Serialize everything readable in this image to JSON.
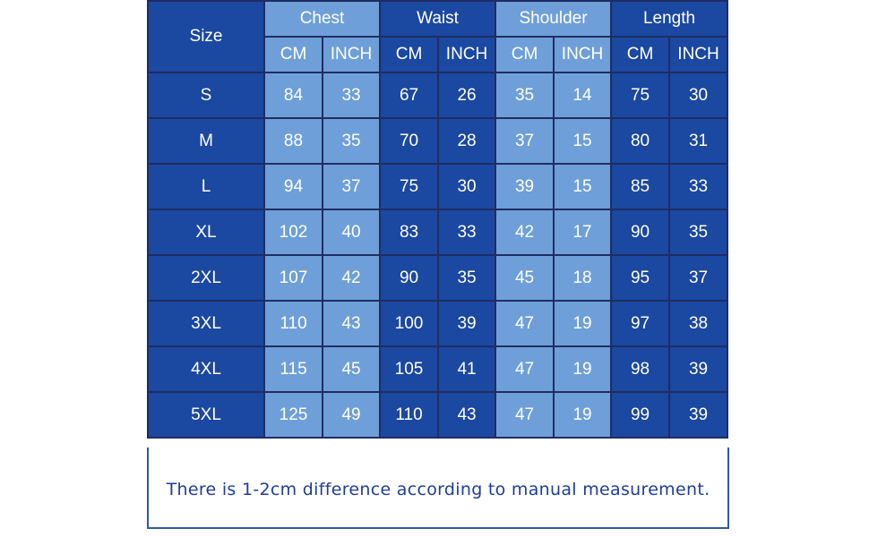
{
  "table": {
    "size_header": "Size",
    "groups": [
      "Chest",
      "Waist",
      "Shoulder",
      "Length"
    ],
    "units": [
      "CM",
      "INCH"
    ],
    "rows": [
      {
        "size": "S",
        "values": [
          "84",
          "33",
          "67",
          "26",
          "35",
          "14",
          "75",
          "30"
        ]
      },
      {
        "size": "M",
        "values": [
          "88",
          "35",
          "70",
          "28",
          "37",
          "15",
          "80",
          "31"
        ]
      },
      {
        "size": "L",
        "values": [
          "94",
          "37",
          "75",
          "30",
          "39",
          "15",
          "85",
          "33"
        ]
      },
      {
        "size": "XL",
        "values": [
          "102",
          "40",
          "83",
          "33",
          "42",
          "17",
          "90",
          "35"
        ]
      },
      {
        "size": "2XL",
        "values": [
          "107",
          "42",
          "90",
          "35",
          "45",
          "18",
          "95",
          "37"
        ]
      },
      {
        "size": "3XL",
        "values": [
          "110",
          "43",
          "100",
          "39",
          "47",
          "19",
          "97",
          "38"
        ]
      },
      {
        "size": "4XL",
        "values": [
          "115",
          "45",
          "105",
          "41",
          "47",
          "19",
          "98",
          "39"
        ]
      },
      {
        "size": "5XL",
        "values": [
          "125",
          "49",
          "110",
          "43",
          "47",
          "19",
          "99",
          "39"
        ]
      }
    ]
  },
  "note": "There is 1-2cm difference according to manual measurement.",
  "colors": {
    "dark_blue": "#1b48a0",
    "light_blue": "#6e9fd8",
    "note_text": "#1e3d9a"
  }
}
